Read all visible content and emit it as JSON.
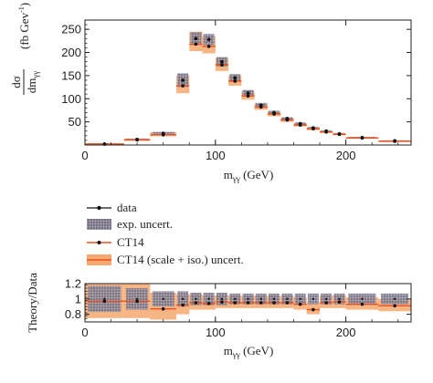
{
  "chart_data": [
    {
      "type": "bar",
      "panel": "main",
      "ylabel_numerator": "dσ",
      "ylabel_denominator": "dm",
      "ylabel_denominator_sub": "γγ",
      "ylabel_units": "(fb Gev",
      "ylabel_units_sup": "-1",
      "ylabel_units_close": ")",
      "xlabel": "m",
      "xlabel_sub": "γγ",
      "xlabel_units": " (GeV)",
      "xlim": [
        0,
        250
      ],
      "ylim": [
        0,
        270
      ],
      "xticks": [
        "0",
        "100",
        "200"
      ],
      "xtick_values": [
        0,
        100,
        200
      ],
      "yticks": [
        "50",
        "100",
        "150",
        "200",
        "250"
      ],
      "ytick_values": [
        50,
        100,
        150,
        200,
        250
      ],
      "bins": [
        {
          "lo": 0,
          "hi": 30,
          "data": 2,
          "data_err": 1.5,
          "ct14": 2,
          "ct14_lo": 1,
          "ct14_hi": 3
        },
        {
          "lo": 30,
          "hi": 50,
          "data": 12,
          "data_err": 2,
          "ct14": 11,
          "ct14_lo": 9,
          "ct14_hi": 14
        },
        {
          "lo": 50,
          "hi": 70,
          "data": 25,
          "data_err": 3,
          "ct14": 22,
          "ct14_lo": 19,
          "ct14_hi": 28
        },
        {
          "lo": 70,
          "hi": 80,
          "data": 140,
          "data_err": 15,
          "ct14": 128,
          "ct14_lo": 112,
          "ct14_hi": 150
        },
        {
          "lo": 80,
          "hi": 90,
          "data": 230,
          "data_err": 14,
          "ct14": 218,
          "ct14_lo": 203,
          "ct14_hi": 245
        },
        {
          "lo": 90,
          "hi": 100,
          "data": 228,
          "data_err": 12,
          "ct14": 213,
          "ct14_lo": 198,
          "ct14_hi": 235
        },
        {
          "lo": 100,
          "hi": 110,
          "data": 180,
          "data_err": 10,
          "ct14": 173,
          "ct14_lo": 160,
          "ct14_hi": 188
        },
        {
          "lo": 110,
          "hi": 120,
          "data": 145,
          "data_err": 8,
          "ct14": 138,
          "ct14_lo": 128,
          "ct14_hi": 150
        },
        {
          "lo": 120,
          "hi": 130,
          "data": 112,
          "data_err": 7,
          "ct14": 106,
          "ct14_lo": 98,
          "ct14_hi": 116
        },
        {
          "lo": 130,
          "hi": 140,
          "data": 86,
          "data_err": 5,
          "ct14": 82,
          "ct14_lo": 76,
          "ct14_hi": 90
        },
        {
          "lo": 140,
          "hi": 150,
          "data": 70,
          "data_err": 4,
          "ct14": 67,
          "ct14_lo": 62,
          "ct14_hi": 73
        },
        {
          "lo": 150,
          "hi": 160,
          "data": 57,
          "data_err": 3,
          "ct14": 54,
          "ct14_lo": 50,
          "ct14_hi": 59
        },
        {
          "lo": 160,
          "hi": 170,
          "data": 46,
          "data_err": 3,
          "ct14": 43,
          "ct14_lo": 40,
          "ct14_hi": 47
        },
        {
          "lo": 170,
          "hi": 180,
          "data": 37,
          "data_err": 2,
          "ct14": 35,
          "ct14_lo": 32,
          "ct14_hi": 38
        },
        {
          "lo": 180,
          "hi": 190,
          "data": 30,
          "data_err": 2,
          "ct14": 28,
          "ct14_lo": 26,
          "ct14_hi": 31
        },
        {
          "lo": 190,
          "hi": 200,
          "data": 24,
          "data_err": 2,
          "ct14": 23,
          "ct14_lo": 21,
          "ct14_hi": 25
        },
        {
          "lo": 200,
          "hi": 225,
          "data": 16,
          "data_err": 1.5,
          "ct14": 15,
          "ct14_lo": 14,
          "ct14_hi": 17
        },
        {
          "lo": 225,
          "hi": 250,
          "data": 9,
          "data_err": 1,
          "ct14": 8,
          "ct14_lo": 7,
          "ct14_hi": 10
        }
      ]
    },
    {
      "type": "bar",
      "panel": "ratio",
      "ylabel": "Theory/Data",
      "xlabel": "m",
      "xlabel_sub": "γγ",
      "xlabel_units": " (GeV)",
      "xlim": [
        0,
        250
      ],
      "ylim": [
        0.7,
        1.2
      ],
      "xticks": [
        "0",
        "100",
        "200"
      ],
      "xtick_values": [
        0,
        100,
        200
      ],
      "yticks": [
        "0.8",
        "1",
        "1.2"
      ],
      "ytick_values": [
        0.8,
        1.0,
        1.2
      ],
      "bins": [
        {
          "lo": 0,
          "hi": 30,
          "data": 1.0,
          "exp_lo": 0.83,
          "exp_hi": 1.17,
          "ct14": 0.97,
          "ct14_lo": 0.75,
          "ct14_hi": 1.2
        },
        {
          "lo": 30,
          "hi": 50,
          "data": 1.0,
          "exp_lo": 0.86,
          "exp_hi": 1.14,
          "ct14": 0.97,
          "ct14_lo": 0.75,
          "ct14_hi": 1.2
        },
        {
          "lo": 50,
          "hi": 70,
          "data": 1.0,
          "exp_lo": 0.9,
          "exp_hi": 1.1,
          "ct14": 0.87,
          "ct14_lo": 0.73,
          "ct14_hi": 1.08
        },
        {
          "lo": 70,
          "hi": 80,
          "data": 1.0,
          "exp_lo": 0.9,
          "exp_hi": 1.1,
          "ct14": 0.92,
          "ct14_lo": 0.8,
          "ct14_hi": 1.06
        },
        {
          "lo": 80,
          "hi": 90,
          "data": 1.0,
          "exp_lo": 0.92,
          "exp_hi": 1.08,
          "ct14": 0.95,
          "ct14_lo": 0.86,
          "ct14_hi": 1.06
        },
        {
          "lo": 90,
          "hi": 100,
          "data": 1.0,
          "exp_lo": 0.92,
          "exp_hi": 1.08,
          "ct14": 0.94,
          "ct14_lo": 0.86,
          "ct14_hi": 1.04
        },
        {
          "lo": 100,
          "hi": 110,
          "data": 1.0,
          "exp_lo": 0.92,
          "exp_hi": 1.08,
          "ct14": 0.96,
          "ct14_lo": 0.88,
          "ct14_hi": 1.05
        },
        {
          "lo": 110,
          "hi": 120,
          "data": 1.0,
          "exp_lo": 0.93,
          "exp_hi": 1.07,
          "ct14": 0.95,
          "ct14_lo": 0.88,
          "ct14_hi": 1.04
        },
        {
          "lo": 120,
          "hi": 130,
          "data": 1.0,
          "exp_lo": 0.93,
          "exp_hi": 1.07,
          "ct14": 0.95,
          "ct14_lo": 0.88,
          "ct14_hi": 1.04
        },
        {
          "lo": 130,
          "hi": 140,
          "data": 1.0,
          "exp_lo": 0.93,
          "exp_hi": 1.07,
          "ct14": 0.95,
          "ct14_lo": 0.88,
          "ct14_hi": 1.04
        },
        {
          "lo": 140,
          "hi": 150,
          "data": 1.0,
          "exp_lo": 0.93,
          "exp_hi": 1.07,
          "ct14": 0.95,
          "ct14_lo": 0.88,
          "ct14_hi": 1.04
        },
        {
          "lo": 150,
          "hi": 160,
          "data": 1.0,
          "exp_lo": 0.93,
          "exp_hi": 1.07,
          "ct14": 0.95,
          "ct14_lo": 0.88,
          "ct14_hi": 1.04
        },
        {
          "lo": 160,
          "hi": 170,
          "data": 1.0,
          "exp_lo": 0.93,
          "exp_hi": 1.07,
          "ct14": 0.93,
          "ct14_lo": 0.86,
          "ct14_hi": 1.02
        },
        {
          "lo": 170,
          "hi": 180,
          "data": 1.0,
          "exp_lo": 0.93,
          "exp_hi": 1.07,
          "ct14": 0.86,
          "ct14_lo": 0.8,
          "ct14_hi": 0.95
        },
        {
          "lo": 180,
          "hi": 190,
          "data": 1.0,
          "exp_lo": 0.93,
          "exp_hi": 1.07,
          "ct14": 0.95,
          "ct14_lo": 0.88,
          "ct14_hi": 1.04
        },
        {
          "lo": 190,
          "hi": 200,
          "data": 1.0,
          "exp_lo": 0.93,
          "exp_hi": 1.07,
          "ct14": 0.96,
          "ct14_lo": 0.88,
          "ct14_hi": 1.05
        },
        {
          "lo": 200,
          "hi": 225,
          "data": 1.0,
          "exp_lo": 0.93,
          "exp_hi": 1.07,
          "ct14": 0.93,
          "ct14_lo": 0.86,
          "ct14_hi": 1.02
        },
        {
          "lo": 225,
          "hi": 250,
          "data": 1.0,
          "exp_lo": 0.93,
          "exp_hi": 1.07,
          "ct14": 0.91,
          "ct14_lo": 0.84,
          "ct14_hi": 1.0
        }
      ]
    }
  ],
  "legend": {
    "placement": "between-panels",
    "items": [
      {
        "id": "data",
        "label": "data"
      },
      {
        "id": "exp",
        "label": "exp. uncert."
      },
      {
        "id": "ct14",
        "label": "CT14"
      },
      {
        "id": "ct14unc",
        "label": "CT14 (scale + iso.) uncert."
      }
    ]
  },
  "colors": {
    "data": "#111111",
    "exp_band": "#9a96a6",
    "ct14_line": "#e8501e",
    "ct14_band": "#f6a86e",
    "axis": "#222222"
  }
}
